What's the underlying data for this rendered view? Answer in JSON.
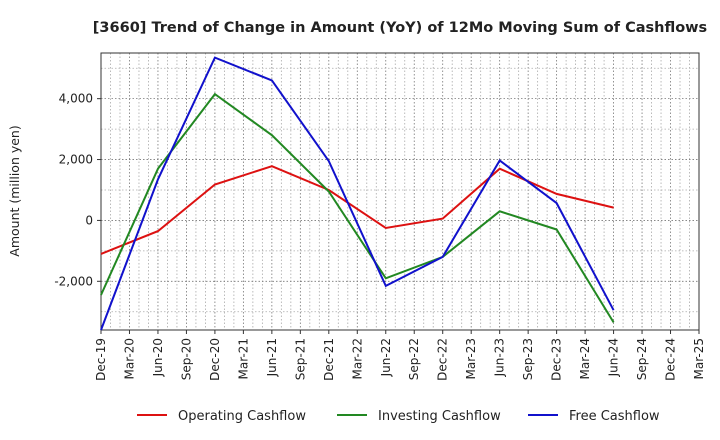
{
  "chart_data": {
    "type": "line",
    "title": "[3660]  Trend of Change in Amount (YoY) of 12Mo Moving Sum of Cashflows",
    "ylabel": "Amount (million yen)",
    "xlabel": "",
    "ylim": [
      -3600,
      5500
    ],
    "yticks": [
      -2000,
      0,
      2000,
      4000
    ],
    "ytick_labels": [
      "-2,000",
      "0",
      "2,000",
      "4,000"
    ],
    "categories": [
      "Dec-19",
      "Mar-20",
      "Jun-20",
      "Sep-20",
      "Dec-20",
      "Mar-21",
      "Jun-21",
      "Sep-21",
      "Dec-21",
      "Mar-22",
      "Jun-22",
      "Sep-22",
      "Dec-22",
      "Mar-23",
      "Jun-23",
      "Sep-23",
      "Dec-23",
      "Mar-24",
      "Jun-24",
      "Sep-24",
      "Dec-24",
      "Mar-25"
    ],
    "grid": true,
    "legend_position": "bottom",
    "series": [
      {
        "name": "Operating Cashflow",
        "color": "#dd1111",
        "points": [
          [
            "Dec-19",
            -1100
          ],
          [
            "Jun-20",
            -350
          ],
          [
            "Dec-20",
            1180
          ],
          [
            "Jun-21",
            1780
          ],
          [
            "Dec-21",
            1000
          ],
          [
            "Jun-22",
            -250
          ],
          [
            "Dec-22",
            60
          ],
          [
            "Jun-23",
            1700
          ],
          [
            "Dec-23",
            870
          ],
          [
            "Jun-24",
            420
          ]
        ]
      },
      {
        "name": "Investing Cashflow",
        "color": "#228822",
        "points": [
          [
            "Dec-19",
            -2450
          ],
          [
            "Jun-20",
            1700
          ],
          [
            "Dec-20",
            4150
          ],
          [
            "Jun-21",
            2800
          ],
          [
            "Dec-21",
            950
          ],
          [
            "Jun-22",
            -1900
          ],
          [
            "Dec-22",
            -1200
          ],
          [
            "Jun-23",
            300
          ],
          [
            "Dec-23",
            -300
          ],
          [
            "Jun-24",
            -3350
          ]
        ]
      },
      {
        "name": "Free Cashflow",
        "color": "#1111cc",
        "points": [
          [
            "Dec-19",
            -3600
          ],
          [
            "Jun-20",
            1350
          ],
          [
            "Dec-20",
            5350
          ],
          [
            "Jun-21",
            4600
          ],
          [
            "Dec-21",
            1950
          ],
          [
            "Jun-22",
            -2150
          ],
          [
            "Dec-22",
            -1200
          ],
          [
            "Jun-23",
            1970
          ],
          [
            "Dec-23",
            570
          ],
          [
            "Jun-24",
            -2950
          ]
        ]
      }
    ]
  }
}
